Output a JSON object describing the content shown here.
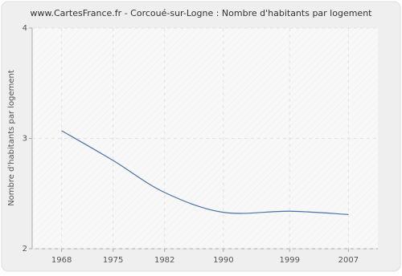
{
  "chart_data": {
    "type": "line",
    "title": "www.CartesFrance.fr - Corcoué-sur-Logne : Nombre d'habitants par logement",
    "y_label": "Nombre d'habitants par logement",
    "x": [
      1968,
      1975,
      1982,
      1990,
      1999,
      2007
    ],
    "values": [
      3.07,
      2.8,
      2.51,
      2.33,
      2.34,
      2.31
    ],
    "color": "#4a72a8",
    "xlim": [
      1964,
      2011
    ],
    "xticks": [
      1968,
      1975,
      1982,
      1990,
      1999,
      2007
    ],
    "ylim": [
      2,
      4
    ],
    "yticks": [
      2,
      3,
      4
    ],
    "grid": true
  }
}
